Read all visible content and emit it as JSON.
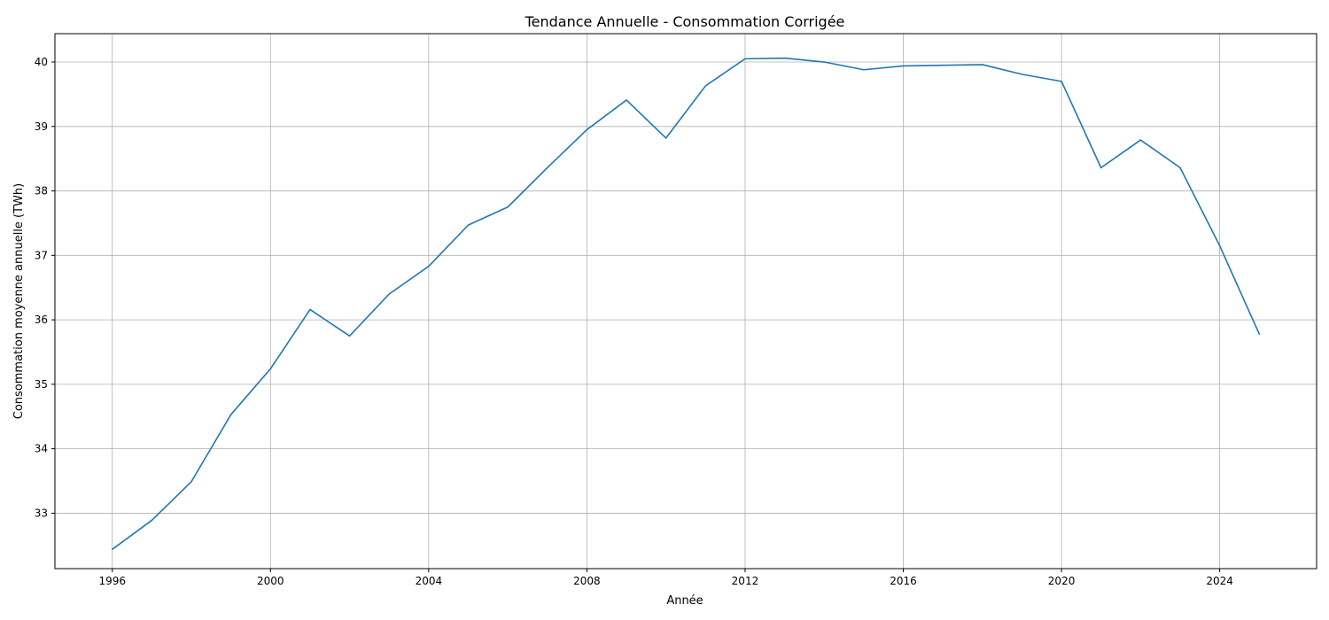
{
  "chart_data": {
    "type": "line",
    "title": "Tendance Annuelle - Consommation Corrigée",
    "xlabel": "Année",
    "ylabel": "Consommation moyenne annuelle (TWh)",
    "xlim": [
      1994.55,
      2026.45
    ],
    "ylim": [
      32.14,
      40.44
    ],
    "xticks": [
      1996,
      2000,
      2004,
      2008,
      2012,
      2016,
      2020,
      2024
    ],
    "yticks": [
      33,
      34,
      35,
      36,
      37,
      38,
      39,
      40
    ],
    "grid": true,
    "series": [
      {
        "color": "#1f77b4",
        "x": [
          1996,
          1997,
          1998,
          1999,
          2000,
          2001,
          2002,
          2003,
          2004,
          2005,
          2006,
          2007,
          2008,
          2009,
          2010,
          2011,
          2012,
          2013,
          2014,
          2015,
          2016,
          2017,
          2018,
          2019,
          2020,
          2021,
          2022,
          2023,
          2024,
          2025
        ],
        "y": [
          32.44,
          32.89,
          33.49,
          34.53,
          35.24,
          36.16,
          35.75,
          36.4,
          36.83,
          37.47,
          37.75,
          38.36,
          38.95,
          39.41,
          38.82,
          39.63,
          40.05,
          40.06,
          40.0,
          39.88,
          39.94,
          39.95,
          39.96,
          39.81,
          39.7,
          38.36,
          38.79,
          38.36,
          37.15,
          35.78
        ]
      }
    ]
  }
}
